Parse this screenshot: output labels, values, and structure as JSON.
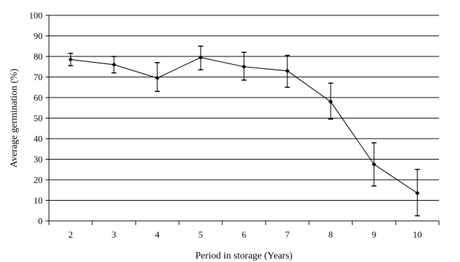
{
  "chart_data": {
    "type": "line",
    "title": "",
    "xlabel": "Period in storage (Years)",
    "ylabel": "Average germination (%)",
    "categories": [
      "2",
      "3",
      "4",
      "5",
      "6",
      "7",
      "8",
      "9",
      "10"
    ],
    "x": [
      2,
      3,
      4,
      5,
      6,
      7,
      8,
      9,
      10
    ],
    "series": [
      {
        "values": [
          78.5,
          76,
          69.5,
          79.5,
          75,
          73,
          58,
          27.5,
          13.5
        ],
        "error_low": [
          75.5,
          72,
          63,
          73.5,
          68.5,
          65,
          49.5,
          17,
          2.5
        ],
        "error_high": [
          81.5,
          80,
          77,
          85,
          82,
          80.5,
          67,
          38,
          25
        ],
        "color": "#000000",
        "marker": "diamond"
      }
    ],
    "ylim": [
      0,
      100
    ],
    "yticks": [
      0,
      10,
      20,
      30,
      40,
      50,
      60,
      70,
      80,
      90,
      100
    ],
    "grid": "horizontal",
    "legend": "none"
  }
}
